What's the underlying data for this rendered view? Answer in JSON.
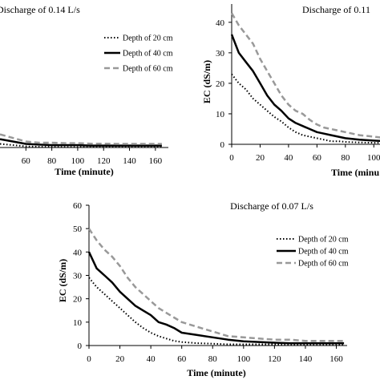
{
  "chart_data": [
    {
      "type": "line",
      "title": "Discharge of 0.14 L/s",
      "xlabel": "Time (minute)",
      "ylabel": "",
      "xticks": [
        60,
        80,
        100,
        120,
        140,
        160
      ],
      "xlim": [
        40,
        170
      ],
      "ylim": [
        0,
        60
      ],
      "legend_position": "top-right",
      "x": [
        40,
        50,
        60,
        70,
        80,
        90,
        100,
        110,
        120,
        130,
        140,
        150,
        160,
        165
      ],
      "series": [
        {
          "name": "Depth of 20 cm",
          "style": "dotted",
          "color": "#000000",
          "values": [
            1.5,
            1,
            0.5,
            0.3,
            0.3,
            0.2,
            0.2,
            0.2,
            0.2,
            0.2,
            0.2,
            0.2,
            0.2,
            0.2
          ]
        },
        {
          "name": "Depth of 40 cm",
          "style": "solid",
          "color": "#000000",
          "values": [
            3.5,
            2.5,
            1.5,
            1.2,
            1,
            1,
            1,
            0.8,
            0.8,
            0.8,
            0.8,
            0.8,
            0.8,
            0.8
          ]
        },
        {
          "name": "Depth of 60 cm",
          "style": "dashed",
          "color": "#999999",
          "values": [
            5.5,
            4,
            2.5,
            2,
            2,
            1.8,
            1.8,
            1.6,
            1.6,
            1.5,
            1.5,
            1.5,
            1.5,
            1.5
          ]
        }
      ]
    },
    {
      "type": "line",
      "title": "Discharge of 0.11",
      "xlabel": "Time (minu",
      "ylabel": "EC (dS/m)",
      "xticks": [
        0,
        20,
        40,
        60,
        80,
        100
      ],
      "yticks": [
        0,
        10,
        20,
        30,
        40
      ],
      "xlim": [
        0,
        110
      ],
      "ylim": [
        0,
        46
      ],
      "legend_position": "none",
      "x": [
        0,
        5,
        10,
        15,
        20,
        25,
        30,
        35,
        40,
        45,
        50,
        55,
        60,
        65,
        70,
        75,
        80,
        90,
        100,
        110
      ],
      "series": [
        {
          "name": "Depth of 20 cm",
          "style": "dotted",
          "color": "#000000",
          "values": [
            23,
            20,
            18,
            15,
            13,
            11,
            9,
            7.5,
            5.5,
            4,
            3,
            2.5,
            2,
            1.5,
            1,
            1,
            0.8,
            0.6,
            0.5,
            0.5
          ]
        },
        {
          "name": "Depth of 40 cm",
          "style": "solid",
          "color": "#000000",
          "values": [
            36,
            30,
            27,
            24,
            20,
            16,
            13,
            11,
            8.5,
            7,
            6,
            5,
            4,
            3.5,
            3,
            2.5,
            2,
            1.5,
            1.2,
            1
          ]
        },
        {
          "name": "Depth of 60 cm",
          "style": "dashed",
          "color": "#999999",
          "values": [
            43,
            39,
            36,
            33,
            28,
            24,
            20,
            16,
            13,
            11,
            10,
            8,
            6.5,
            5.5,
            5,
            4.5,
            4,
            3,
            2.5,
            2
          ]
        }
      ]
    },
    {
      "type": "line",
      "title": "Discharge of 0.07 L/s",
      "xlabel": "Time (minute)",
      "ylabel": "EC (dS/m)",
      "xticks": [
        0,
        20,
        40,
        60,
        80,
        100,
        120,
        140,
        160
      ],
      "yticks": [
        0,
        10,
        20,
        30,
        40,
        50,
        60
      ],
      "xlim": [
        0,
        167
      ],
      "ylim": [
        0,
        60
      ],
      "legend_position": "top-right",
      "x": [
        0,
        5,
        10,
        15,
        20,
        25,
        30,
        35,
        40,
        45,
        50,
        55,
        60,
        70,
        80,
        90,
        100,
        110,
        120,
        130,
        140,
        150,
        160,
        165
      ],
      "series": [
        {
          "name": "Depth of 20 cm",
          "style": "dotted",
          "color": "#000000",
          "values": [
            29,
            25,
            22,
            19,
            16,
            13,
            10,
            7.5,
            5.5,
            4,
            3,
            2,
            1.5,
            1,
            0.8,
            0.5,
            0.5,
            0.5,
            0.5,
            0.5,
            0.5,
            0.5,
            0.5,
            0.5
          ]
        },
        {
          "name": "Depth of 40 cm",
          "style": "solid",
          "color": "#000000",
          "values": [
            40,
            33,
            30,
            27,
            23,
            20,
            17,
            15,
            13,
            10,
            9,
            7.5,
            5.5,
            4.5,
            3.5,
            2.5,
            1.8,
            1.5,
            1.2,
            1,
            1,
            1,
            1,
            1
          ]
        },
        {
          "name": "Depth of 60 cm",
          "style": "dashed",
          "color": "#999999",
          "values": [
            50,
            45,
            41,
            38,
            34,
            29,
            25,
            22,
            19,
            16,
            14,
            12,
            10,
            8,
            6,
            4,
            3.5,
            3,
            2.5,
            2.5,
            2,
            2,
            2,
            2
          ]
        }
      ]
    }
  ]
}
